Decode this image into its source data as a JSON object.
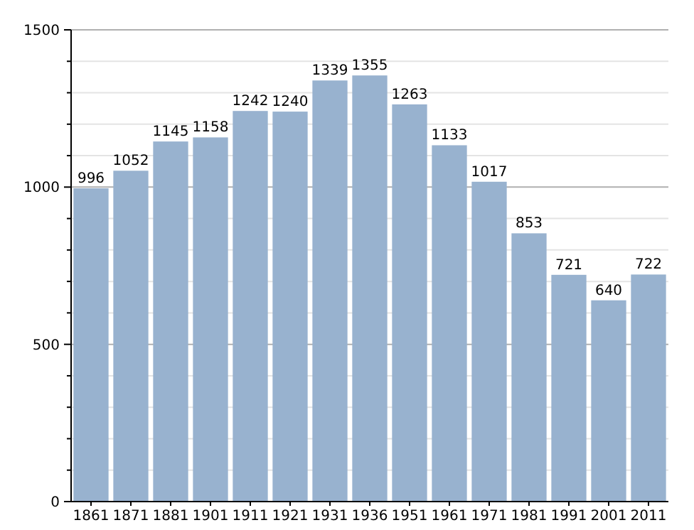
{
  "chart_data": {
    "type": "bar",
    "categories": [
      "1861",
      "1871",
      "1881",
      "1901",
      "1911",
      "1921",
      "1931",
      "1936",
      "1951",
      "1961",
      "1971",
      "1981",
      "1991",
      "2001",
      "2011"
    ],
    "values": [
      996,
      1052,
      1145,
      1158,
      1242,
      1240,
      1339,
      1355,
      1263,
      1133,
      1017,
      853,
      721,
      640,
      722
    ],
    "color": "#98b2cf",
    "ylim": [
      0,
      1500
    ],
    "yticks": [
      0,
      {
        "value": 100,
        "label": null
      },
      {
        "value": 200,
        "label": null
      },
      {
        "value": 300,
        "label": null
      },
      {
        "value": 400,
        "label": null
      },
      500,
      {
        "value": 600,
        "label": null
      },
      {
        "value": 700,
        "label": null
      },
      {
        "value": 800,
        "label": null
      },
      {
        "value": 900,
        "label": null
      },
      1000,
      {
        "value": 1100,
        "label": null
      },
      {
        "value": 1200,
        "label": null
      },
      {
        "value": 1300,
        "label": null
      },
      {
        "value": 1400,
        "label": null
      },
      1500
    ],
    "grid": "y",
    "data_labels": true
  }
}
